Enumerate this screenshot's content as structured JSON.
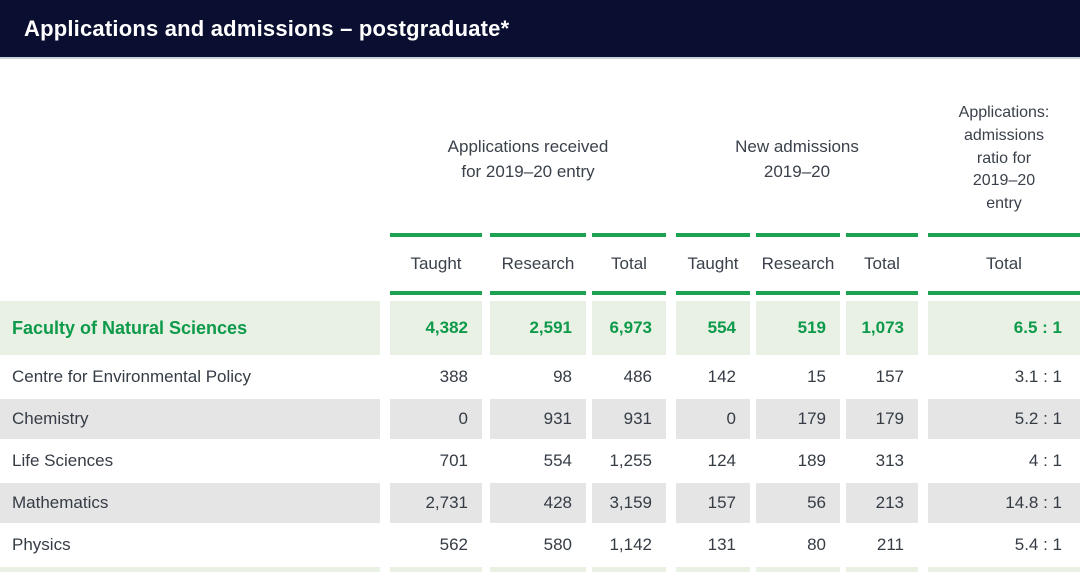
{
  "header": {
    "title": "Applications and admissions – postgraduate*"
  },
  "colors": {
    "navy_bar": "#0a0e30",
    "accent_green_line": "#1ba351",
    "accent_green_text": "#0d9a4a",
    "highlight_row_bg": "#e9f1e5",
    "alt_row_bg": "#e5e5e5",
    "text": "#353c45"
  },
  "table": {
    "group_headers": {
      "applications": "Applications received\nfor 2019–20 entry",
      "admissions": "New admissions\n2019–20",
      "ratio": "Applications:\nadmissions\nratio for\n2019–20\nentry"
    },
    "column_headers": [
      "Taught",
      "Research",
      "Total",
      "Taught",
      "Research",
      "Total",
      "Total"
    ],
    "rows": [
      {
        "label": "Faculty of Natural Sciences",
        "values": [
          "4,382",
          "2,591",
          "6,973",
          "554",
          "519",
          "1,073",
          "6.5 : 1"
        ]
      },
      {
        "label": "Centre for Environmental Policy",
        "values": [
          "388",
          "98",
          "486",
          "142",
          "15",
          "157",
          "3.1 : 1"
        ]
      },
      {
        "label": "Chemistry",
        "values": [
          "0",
          "931",
          "931",
          "0",
          "179",
          "179",
          "5.2 : 1"
        ]
      },
      {
        "label": "Life Sciences",
        "values": [
          "701",
          "554",
          "1,255",
          "124",
          "189",
          "313",
          "4 : 1"
        ]
      },
      {
        "label": "Mathematics",
        "values": [
          "2,731",
          "428",
          "3,159",
          "157",
          "56",
          "213",
          "14.8 : 1"
        ]
      },
      {
        "label": "Physics",
        "values": [
          "562",
          "580",
          "1,142",
          "131",
          "80",
          "211",
          "5.4 : 1"
        ]
      }
    ]
  }
}
